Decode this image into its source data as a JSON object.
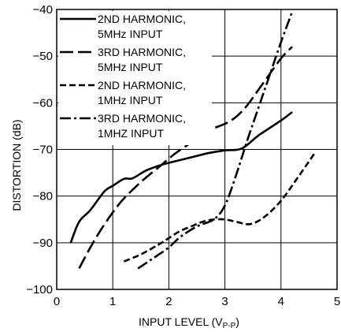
{
  "chart_data": {
    "type": "line",
    "xlabel_main": "INPUT LEVEL (V",
    "xlabel_sub": "P-P",
    "xlabel_end": ")",
    "ylabel": "DISTORTION (dB)",
    "xlim": [
      0,
      5
    ],
    "ylim": [
      -100,
      -40
    ],
    "xticks": [
      "0",
      "1",
      "2",
      "3",
      "4",
      "5"
    ],
    "yticks": [
      "−40",
      "−50",
      "−60",
      "−70",
      "−80",
      "−90",
      "−100"
    ],
    "grid": true,
    "legend_position": "top-left",
    "series": [
      {
        "name_line1": "2ND HARMONIC,",
        "name_line2": "5MHz INPUT",
        "style": "solid",
        "x": [
          0.25,
          0.4,
          0.6,
          0.85,
          1.0,
          1.2,
          1.35,
          1.6,
          1.9,
          2.3,
          2.7,
          3.0,
          3.3,
          3.6,
          4.0,
          4.2
        ],
        "y": [
          -90,
          -85.5,
          -83.0,
          -79.0,
          -77.8,
          -76.3,
          -76.2,
          -74.5,
          -73.2,
          -72.0,
          -70.8,
          -70.2,
          -69.8,
          -67.0,
          -63.8,
          -62.0
        ]
      },
      {
        "name_line1": "3RD HARMONIC,",
        "name_line2": "5MHz INPUT",
        "style": "longdash",
        "x": [
          0.4,
          0.6,
          0.8,
          1.0,
          1.2,
          1.5,
          1.8,
          2.1,
          2.4,
          2.7,
          3.0,
          3.2,
          3.4,
          3.7,
          4.0,
          4.2
        ],
        "y": [
          -95.5,
          -91.0,
          -87.0,
          -83.5,
          -80.5,
          -77.0,
          -74.0,
          -71.0,
          -68.5,
          -66.0,
          -64.5,
          -63.0,
          -60.5,
          -55.5,
          -50.5,
          -48.0
        ]
      },
      {
        "name_line1": "2ND HARMONIC,",
        "name_line2": "1MHz INPUT",
        "style": "shortdash",
        "x": [
          1.2,
          1.5,
          1.8,
          2.0,
          2.2,
          2.4,
          2.6,
          2.8,
          3.0,
          3.2,
          3.45,
          3.7,
          4.0,
          4.3,
          4.6
        ],
        "y": [
          -94.0,
          -92.5,
          -90.5,
          -89.0,
          -87.5,
          -86.5,
          -85.5,
          -85.0,
          -85.0,
          -85.5,
          -86.0,
          -84.5,
          -81.0,
          -76.0,
          -70.8
        ]
      },
      {
        "name_line1": "3RD HARMONIC,",
        "name_line2": "1MHZ INPUT",
        "style": "dashdot",
        "x": [
          1.45,
          1.7,
          2.0,
          2.2,
          2.5,
          2.8,
          3.0,
          3.2,
          3.4,
          3.6,
          3.8,
          4.0,
          4.2
        ],
        "y": [
          -95.5,
          -93.5,
          -91.0,
          -88.8,
          -86.5,
          -85.0,
          -82.0,
          -75.5,
          -68.0,
          -61.0,
          -54.0,
          -47.0,
          -40.5
        ]
      }
    ]
  }
}
